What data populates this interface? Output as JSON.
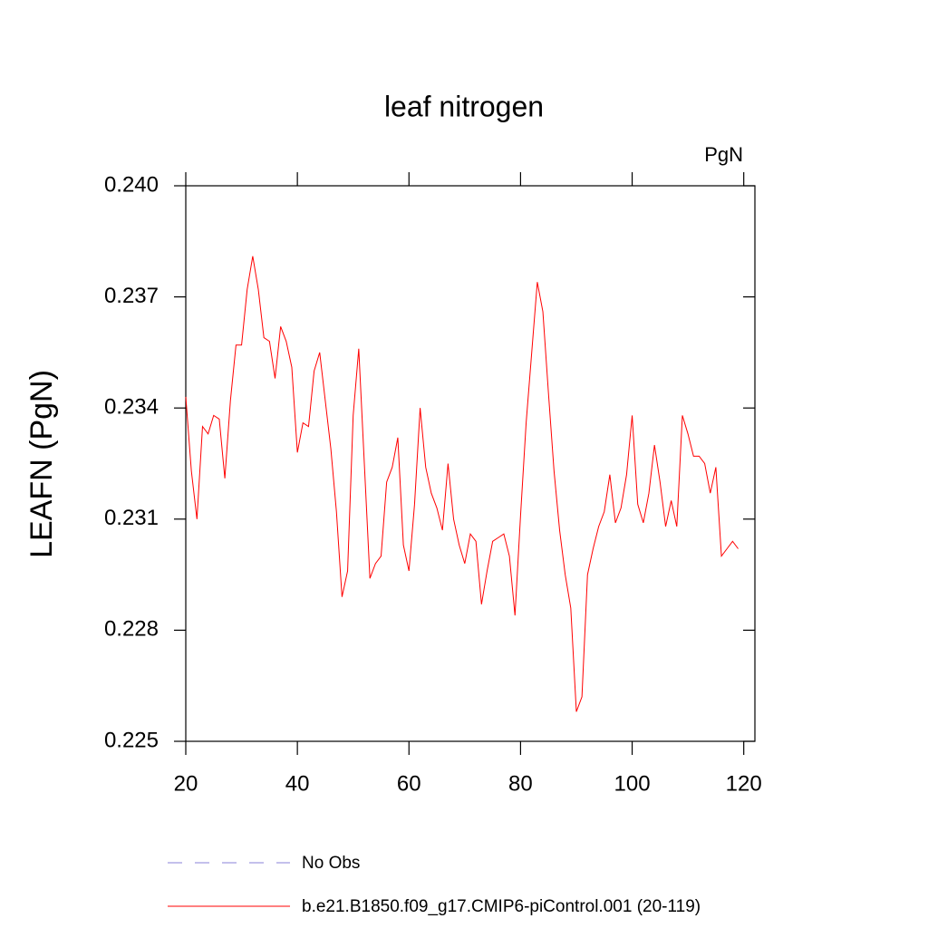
{
  "chart_data": {
    "type": "line",
    "title": "leaf nitrogen",
    "units_label": "PgN",
    "y_label": "LEAFN  (PgN)",
    "x": [
      20,
      21,
      22,
      23,
      24,
      25,
      26,
      27,
      28,
      29,
      30,
      31,
      32,
      33,
      34,
      35,
      36,
      37,
      38,
      39,
      40,
      41,
      42,
      43,
      44,
      45,
      46,
      47,
      48,
      49,
      50,
      51,
      52,
      53,
      54,
      55,
      56,
      57,
      58,
      59,
      60,
      61,
      62,
      63,
      64,
      65,
      66,
      67,
      68,
      69,
      70,
      71,
      72,
      73,
      74,
      75,
      76,
      77,
      78,
      79,
      80,
      81,
      82,
      83,
      84,
      85,
      86,
      87,
      88,
      89,
      90,
      91,
      92,
      93,
      94,
      95,
      96,
      97,
      98,
      99,
      100,
      101,
      102,
      103,
      104,
      105,
      106,
      107,
      108,
      109,
      110,
      111,
      112,
      113,
      114,
      115,
      116,
      117,
      118,
      119
    ],
    "series": [
      {
        "name": "b.e21.B1850.f09_g17.CMIP6-piControl.001 (20-119)",
        "color": "#ff0000",
        "values": [
          0.2343,
          0.2323,
          0.231,
          0.2335,
          0.2333,
          0.2338,
          0.2337,
          0.2321,
          0.2342,
          0.2357,
          0.2357,
          0.2372,
          0.2381,
          0.2372,
          0.2359,
          0.2358,
          0.2348,
          0.2362,
          0.2358,
          0.2351,
          0.2328,
          0.2336,
          0.2335,
          0.235,
          0.2355,
          0.2342,
          0.2329,
          0.2312,
          0.2289,
          0.2296,
          0.2338,
          0.2356,
          0.2325,
          0.2294,
          0.2298,
          0.23,
          0.232,
          0.2324,
          0.2332,
          0.2303,
          0.2296,
          0.2314,
          0.234,
          0.2324,
          0.2317,
          0.2313,
          0.2307,
          0.2325,
          0.231,
          0.2303,
          0.2298,
          0.2306,
          0.2304,
          0.2287,
          0.2296,
          0.2304,
          0.2305,
          0.2306,
          0.23,
          0.2284,
          0.2311,
          0.2336,
          0.2355,
          0.2374,
          0.2366,
          0.2344,
          0.2323,
          0.2307,
          0.2295,
          0.2286,
          0.2258,
          0.2262,
          0.2295,
          0.2302,
          0.2308,
          0.2312,
          0.2322,
          0.2309,
          0.2313,
          0.2322,
          0.2338,
          0.2314,
          0.2309,
          0.2317,
          0.233,
          0.232,
          0.2308,
          0.2315,
          0.2308,
          0.2338,
          0.2333,
          0.2327,
          0.2327,
          0.2325,
          0.2317,
          0.2324,
          0.23,
          0.2302,
          0.2304,
          0.2302
        ]
      }
    ],
    "observations": {
      "name": "No Obs",
      "color": "#8a80d8",
      "dash": "dashed"
    },
    "xlim": [
      20,
      122
    ],
    "xticks": [
      20,
      40,
      60,
      80,
      100,
      120
    ],
    "ylim": [
      0.225,
      0.24
    ],
    "yticks": [
      0.225,
      0.228,
      0.231,
      0.234,
      0.237,
      {
        "value": 0.24,
        "label": "0.240"
      }
    ]
  }
}
